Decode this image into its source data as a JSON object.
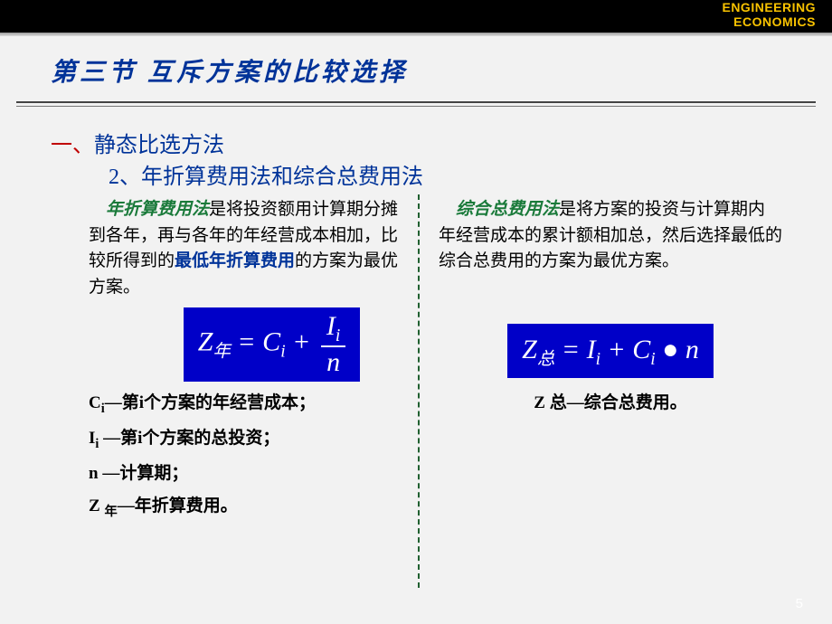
{
  "header": {
    "brand_line1": "ENGINEERING",
    "brand_line2": "ECONOMICS"
  },
  "title": "第三节  互斥方案的比较选择",
  "section1": {
    "num": "一、",
    "text": "静态比选方法"
  },
  "section2": "2、年折算费用法和综合总费用法",
  "left": {
    "lead": "年折算费用法",
    "para_rest": "是将投资额用计算期分摊到各年，再与各年的年经营成本相加，比较所得到的",
    "emph": "最低年折算费用",
    "para_tail": "的方案为最优方案。",
    "formula_html": "Z<sub>年</sub> = C<sub>i</sub> + <span class='frac'><span class='top'>I<sub>i</sub></span><span class='bot'>n</span></span>",
    "defs": [
      "C<span class='sub'>i</span>—第i个方案的年经营成本；",
      "I<span class='sub'>i</span> —第i个方案的总投资；",
      "n —计算期；",
      "Z <span class='sub'>年</span>—年折算费用。"
    ]
  },
  "right": {
    "lead": "综合总费用法",
    "para_rest": "是将方案的投资与计算期内年经营成本的累计额相加总，然后选择最低的综合总费用的方案为最优方案。",
    "formula_html": "Z<sub>总</sub> = I<sub>i</sub> + C<sub>i</sub> ● n",
    "def": "Z <span class='sub'>总</span>—综合总费用。"
  },
  "page_number": "5",
  "colors": {
    "title": "#003399",
    "section_num": "#c00000",
    "term_green": "#1a7a3a",
    "formula_bg": "#0000c8",
    "brand": "#f9c300",
    "divider": "#206030"
  }
}
